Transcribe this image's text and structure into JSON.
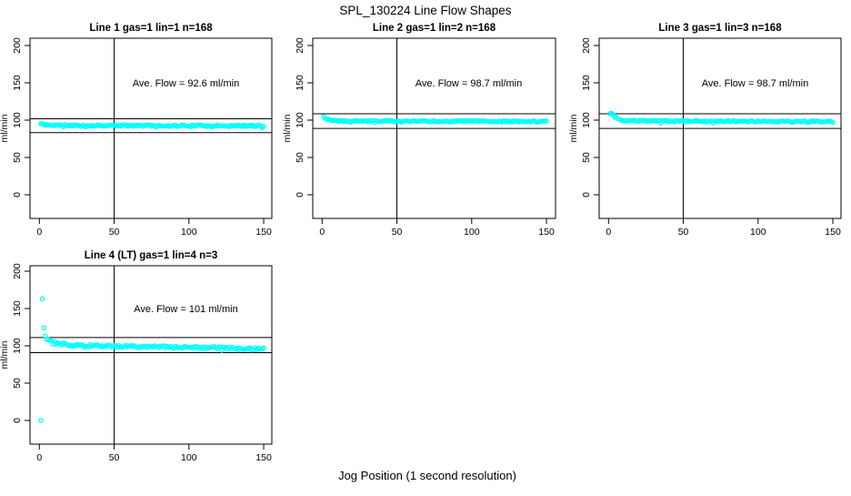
{
  "title": "SPL_130224  Line Flow Shapes",
  "x_axis_title": "Jog Position (1 second resolution)",
  "colors": {
    "points": "#00FFFF",
    "axis": "#000000",
    "background": "#FFFFFF",
    "text": "#000000"
  },
  "chart_data": [
    {
      "type": "scatter",
      "title": "Line 1 gas=1 lin=1 n=168",
      "ylabel": "ml/min",
      "annotation": "Ave. Flow =  92.6  ml/min",
      "ave_flow_ml_min": 92.6,
      "gas": 1,
      "lin": 1,
      "n": 168,
      "xlim": [
        -6.3,
        155.5
      ],
      "ylim": [
        -35,
        210
      ],
      "xticks": [
        0,
        50,
        100,
        150
      ],
      "yticks": [
        0,
        50,
        100,
        150,
        200
      ],
      "ref_vline_x": 50,
      "ref_hlines_y": [
        101.9,
        83.3
      ],
      "marker": "open-circle",
      "x_range": [
        1,
        150
      ],
      "point_profile": [
        [
          1,
          95.2
        ],
        [
          3,
          93.9
        ],
        [
          8,
          93.3
        ],
        [
          30,
          92.8
        ],
        [
          150,
          92.4
        ]
      ],
      "noise_amplitude": 1.1,
      "outliers": [],
      "seed": 11,
      "annotation_pos": [
        98,
        145
      ]
    },
    {
      "type": "scatter",
      "title": "Line 2 gas=1 lin=2 n=168",
      "ylabel": "ml/min",
      "annotation": "Ave. Flow =  98.7  ml/min",
      "ave_flow_ml_min": 98.7,
      "gas": 1,
      "lin": 2,
      "n": 168,
      "xlim": [
        -6.3,
        155.5
      ],
      "ylim": [
        -35,
        210
      ],
      "xticks": [
        0,
        50,
        100,
        150
      ],
      "yticks": [
        0,
        50,
        100,
        150,
        200
      ],
      "ref_vline_x": 50,
      "ref_hlines_y": [
        108.6,
        88.8
      ],
      "marker": "open-circle",
      "x_range": [
        1,
        150
      ],
      "point_profile": [
        [
          1,
          104.5
        ],
        [
          3,
          101.5
        ],
        [
          7,
          99.6
        ],
        [
          15,
          98.9
        ],
        [
          150,
          98.2
        ]
      ],
      "noise_amplitude": 1.0,
      "outliers": [],
      "seed": 22,
      "annotation_pos": [
        98,
        145
      ]
    },
    {
      "type": "scatter",
      "title": "Line 3 gas=1 lin=3 n=168",
      "ylabel": "ml/min",
      "annotation": "Ave. Flow =  98.7  ml/min",
      "ave_flow_ml_min": 98.7,
      "gas": 1,
      "lin": 3,
      "n": 168,
      "xlim": [
        -6.3,
        155.5
      ],
      "ylim": [
        -35,
        210
      ],
      "xticks": [
        0,
        50,
        100,
        150
      ],
      "yticks": [
        0,
        50,
        100,
        150,
        200
      ],
      "ref_vline_x": 50,
      "ref_hlines_y": [
        108.6,
        88.8
      ],
      "marker": "open-circle",
      "x_range": [
        1,
        150
      ],
      "point_profile": [
        [
          1,
          108.5
        ],
        [
          2,
          110
        ],
        [
          4,
          104
        ],
        [
          7,
          100.5
        ],
        [
          12,
          99.2
        ],
        [
          40,
          98.6
        ],
        [
          150,
          98.1
        ]
      ],
      "noise_amplitude": 1.0,
      "outliers": [],
      "seed": 33,
      "annotation_pos": [
        98,
        145
      ]
    },
    {
      "type": "scatter",
      "title": "Line 4 (LT) gas=1 lin=4 n=3",
      "ylabel": "ml/min",
      "annotation": "Ave. Flow =  101   ml/min",
      "ave_flow_ml_min": 101,
      "gas": 1,
      "lin": 4,
      "n": 3,
      "xlim": [
        -6.3,
        155.5
      ],
      "ylim": [
        -35,
        210
      ],
      "xticks": [
        0,
        50,
        100,
        150
      ],
      "yticks": [
        0,
        50,
        100,
        150,
        200
      ],
      "ref_vline_x": 50,
      "ref_hlines_y": [
        111.1,
        90.9
      ],
      "marker": "open-circle",
      "x_range": [
        4,
        150
      ],
      "point_profile": [
        [
          4,
          112
        ],
        [
          6,
          108
        ],
        [
          10,
          104.5
        ],
        [
          18,
          101.5
        ],
        [
          30,
          100.2
        ],
        [
          60,
          99.3
        ],
        [
          90,
          98.4
        ],
        [
          120,
          97.2
        ],
        [
          137,
          95.6
        ],
        [
          150,
          96.8
        ]
      ],
      "noise_amplitude": 1.7,
      "outliers": [
        [
          1,
          0
        ],
        [
          2,
          163
        ],
        [
          3,
          124
        ]
      ],
      "seed": 44,
      "annotation_pos": [
        98,
        145
      ]
    }
  ]
}
